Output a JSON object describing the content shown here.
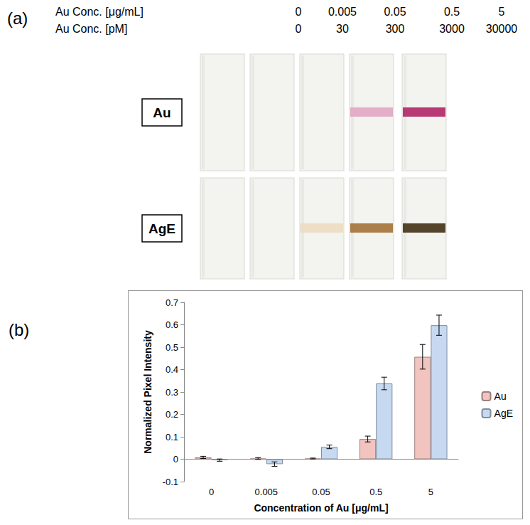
{
  "panel_a": {
    "label": "(a)",
    "header_rows": [
      {
        "label": "Au Conc. [μg/mL]",
        "values": [
          0,
          0.005,
          0.05,
          0.5,
          5
        ]
      },
      {
        "label": "Au Conc. [pM]",
        "values": [
          0,
          30,
          300,
          3000,
          30000
        ]
      }
    ],
    "strips": [
      {
        "name": "Au",
        "colors": [
          null,
          null,
          null,
          "#e3aac4",
          "#b32f6e"
        ]
      },
      {
        "name": "AgE",
        "colors": [
          null,
          null,
          "#ecdcc2",
          "#a8773f",
          "#4c3a21"
        ]
      }
    ]
  },
  "chart_data": {
    "label": "(b)",
    "type": "bar",
    "x_label": "Concentration of Au [μg/mL]",
    "y_label": "Normalized Pixel Intensity",
    "categories": [
      "0",
      "0.005",
      "0.05",
      "0.5",
      "5"
    ],
    "series": [
      {
        "name": "Au",
        "color": "#f2c4c0",
        "values": [
          0.008,
          0.003,
          0.003,
          0.09,
          0.457
        ],
        "errors": [
          0.005,
          0.004,
          0.002,
          0.013,
          0.055
        ]
      },
      {
        "name": "AgE",
        "color": "#c6d9f0",
        "values": [
          -0.004,
          -0.022,
          0.055,
          0.338,
          0.598
        ],
        "errors": [
          0.005,
          0.01,
          0.008,
          0.028,
          0.045
        ]
      }
    ],
    "ylim": [
      -0.1,
      0.7
    ],
    "yticks": [
      -0.1,
      0,
      0.1,
      0.2,
      0.3,
      0.4,
      0.5,
      0.6,
      0.7
    ],
    "grid": false,
    "legend": "right"
  }
}
